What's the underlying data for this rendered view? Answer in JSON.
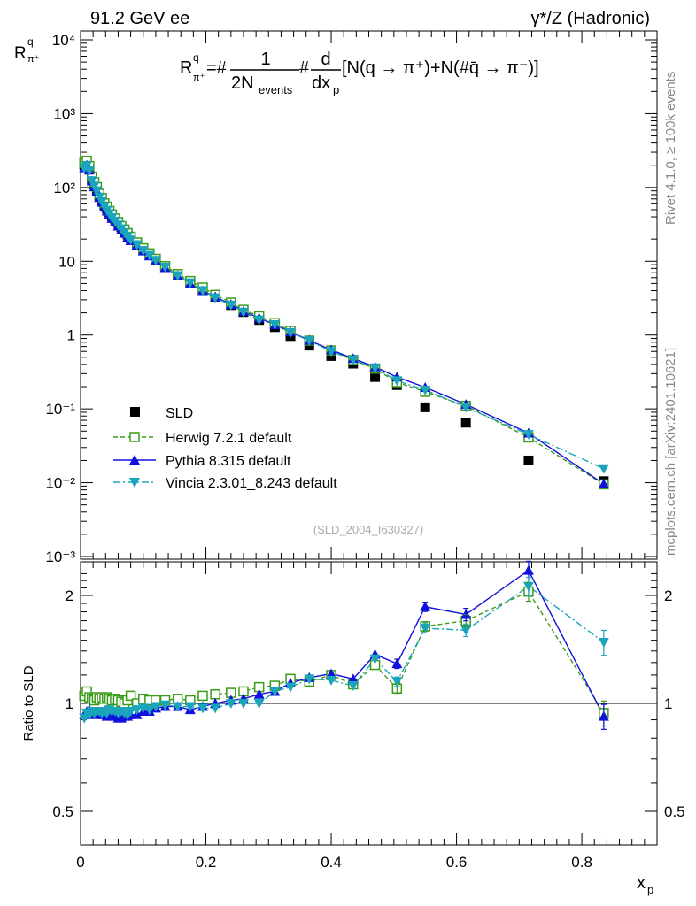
{
  "header": {
    "left": "91.2 GeV ee",
    "right": "γ*/Z (Hadronic)"
  },
  "side": {
    "upper": "Rivet 4.1.0, ≥ 100k events",
    "lower": "mcplots.cern.ch [arXiv:2401.10621]"
  },
  "formula": {
    "lhs": "R",
    "lhs_sup": "q",
    "lhs_sub": "π⁺",
    "eq": "=#",
    "frac1_num": "1",
    "frac1_den": "2N",
    "frac1_den_sub": "events",
    "hash": "#",
    "frac2_num": "d",
    "frac2_den": "dx",
    "frac2_den_sub": "p",
    "rest": "[N(q → π⁺)+N(#q̄ → π⁻)]"
  },
  "watermark": "(SLD_2004_I630327)",
  "colors": {
    "sld": "#000000",
    "herwig": "#3a9b1a",
    "pythia": "#1111dd",
    "vincia": "#1aa5bd"
  },
  "chart_data": [
    {
      "type": "scatter",
      "panel": "main",
      "ylabel": "R",
      "yscale": "log",
      "ylim": [
        0.001,
        10000
      ],
      "xlim": [
        0,
        0.92
      ],
      "ytick_labels": [
        "10⁻³",
        "10⁻²",
        "10⁻¹",
        "1",
        "10",
        "10²",
        "10³",
        "10⁴"
      ],
      "legend_position": "lower-left",
      "legend": [
        "SLD",
        "Herwig 7.2.1 default",
        "Pythia 8.315 default",
        "Vincia 2.3.01_8.243 default"
      ],
      "x": [
        0.006,
        0.01,
        0.014,
        0.018,
        0.022,
        0.026,
        0.03,
        0.034,
        0.038,
        0.042,
        0.046,
        0.05,
        0.055,
        0.06,
        0.065,
        0.07,
        0.075,
        0.08,
        0.09,
        0.1,
        0.11,
        0.12,
        0.135,
        0.155,
        0.175,
        0.195,
        0.215,
        0.24,
        0.26,
        0.285,
        0.31,
        0.335,
        0.365,
        0.4,
        0.435,
        0.47,
        0.505,
        0.55,
        0.615,
        0.715,
        0.835
      ],
      "series": [
        {
          "name": "SLD",
          "marker": "square-filled",
          "values": [
            200,
            210,
            180,
            130,
            110,
            95,
            78,
            68,
            58,
            52,
            46,
            41,
            37,
            33,
            29,
            26,
            23,
            20.5,
            17.5,
            14.5,
            12.5,
            10.5,
            8.4,
            6.5,
            5.2,
            4.1,
            3.3,
            2.55,
            2.05,
            1.6,
            1.28,
            0.97,
            0.72,
            0.52,
            0.41,
            0.27,
            0.21,
            0.105,
            0.065,
            0.02,
            0.0105
          ]
        },
        {
          "name": "Herwig 7.2.1 default",
          "marker": "square-open",
          "line": "dashed",
          "values": [
            215,
            230,
            195,
            140,
            118,
            101,
            82,
            72,
            61,
            55,
            48,
            43,
            38,
            34,
            30,
            27,
            24,
            21.5,
            18,
            15,
            12.8,
            10.8,
            8.6,
            6.7,
            5.4,
            4.4,
            3.5,
            2.75,
            2.2,
            1.8,
            1.45,
            1.14,
            0.84,
            0.62,
            0.46,
            0.35,
            0.23,
            0.17,
            0.11,
            0.041,
            0.0095
          ]
        },
        {
          "name": "Pythia 8.315 default",
          "marker": "triangle-up",
          "line": "solid",
          "values": [
            185,
            200,
            172,
            122,
            102,
            89,
            73,
            63,
            54,
            48,
            43,
            38,
            34,
            30,
            26.5,
            24,
            21,
            19,
            16.5,
            13.8,
            11.8,
            10.2,
            8.2,
            6.4,
            5.0,
            4.0,
            3.3,
            2.6,
            2.1,
            1.7,
            1.38,
            1.1,
            0.85,
            0.63,
            0.48,
            0.37,
            0.27,
            0.195,
            0.115,
            0.047,
            0.0096
          ]
        },
        {
          "name": "Vincia 2.3.01_8.243 default",
          "marker": "triangle-down",
          "line": "dashdot",
          "values": [
            182,
            198,
            168,
            124,
            104,
            90,
            74,
            64,
            55,
            49,
            44,
            39,
            35,
            31,
            27.5,
            24.5,
            21.5,
            19.5,
            16.8,
            14,
            12,
            10.3,
            8.3,
            6.4,
            5.1,
            4.0,
            3.2,
            2.55,
            2.05,
            1.6,
            1.38,
            1.08,
            0.84,
            0.6,
            0.46,
            0.36,
            0.24,
            0.18,
            0.105,
            0.045,
            0.0155
          ]
        }
      ]
    },
    {
      "type": "scatter",
      "panel": "ratio",
      "xlabel": "x",
      "ylabel": "Ratio to SLD",
      "yscale": "log",
      "ylim": [
        0.4,
        2.4
      ],
      "xlim": [
        0,
        0.92
      ],
      "xticks": [
        0,
        0.2,
        0.4,
        0.6,
        0.8
      ],
      "xtick_labels": [
        "0",
        "0.2",
        "0.4",
        "0.6",
        "0.8"
      ],
      "yticks": [
        0.5,
        1,
        2
      ],
      "ytick_labels": [
        "0.5",
        "1",
        "2"
      ],
      "x": [
        0.006,
        0.01,
        0.014,
        0.018,
        0.022,
        0.026,
        0.03,
        0.034,
        0.038,
        0.042,
        0.046,
        0.05,
        0.055,
        0.06,
        0.065,
        0.07,
        0.075,
        0.08,
        0.09,
        0.1,
        0.11,
        0.12,
        0.135,
        0.155,
        0.175,
        0.195,
        0.215,
        0.24,
        0.26,
        0.285,
        0.31,
        0.335,
        0.365,
        0.4,
        0.435,
        0.47,
        0.505,
        0.55,
        0.615,
        0.715,
        0.835
      ],
      "series": [
        {
          "name": "Herwig 7.2.1 default",
          "marker": "square-open",
          "line": "dashed",
          "values": [
            1.05,
            1.08,
            1.04,
            1.03,
            1.02,
            1.04,
            1.03,
            1.04,
            1.03,
            1.04,
            1.03,
            1.02,
            1.03,
            1.02,
            1.01,
            1.0,
            1.02,
            1.05,
            1.0,
            1.03,
            1.02,
            1.02,
            1.02,
            1.03,
            1.02,
            1.05,
            1.06,
            1.07,
            1.08,
            1.11,
            1.12,
            1.17,
            1.15,
            1.2,
            1.13,
            1.28,
            1.1,
            1.64,
            1.7,
            2.05,
            0.94
          ]
        },
        {
          "name": "Pythia 8.315 default",
          "marker": "triangle-up",
          "line": "solid",
          "values": [
            0.93,
            0.95,
            0.96,
            0.94,
            0.93,
            0.94,
            0.94,
            0.93,
            0.93,
            0.92,
            0.93,
            0.93,
            0.92,
            0.91,
            0.91,
            0.92,
            0.92,
            0.93,
            0.93,
            0.95,
            0.95,
            0.97,
            0.98,
            0.98,
            0.96,
            0.98,
            1.0,
            1.02,
            1.03,
            1.06,
            1.08,
            1.14,
            1.18,
            1.21,
            1.17,
            1.37,
            1.29,
            1.86,
            1.77,
            2.35,
            0.92
          ]
        },
        {
          "name": "Vincia 2.3.01_8.243 default",
          "marker": "triangle-down",
          "line": "dashdot",
          "values": [
            0.91,
            0.94,
            0.93,
            0.95,
            0.94,
            0.95,
            0.95,
            0.94,
            0.95,
            0.94,
            0.96,
            0.95,
            0.95,
            0.94,
            0.95,
            0.94,
            0.93,
            0.95,
            0.96,
            0.97,
            0.96,
            0.98,
            0.99,
            0.98,
            0.98,
            0.97,
            0.97,
            1.0,
            1.0,
            1.0,
            1.08,
            1.11,
            1.17,
            1.16,
            1.12,
            1.33,
            1.15,
            1.62,
            1.6,
            2.12,
            1.48
          ]
        }
      ]
    }
  ]
}
